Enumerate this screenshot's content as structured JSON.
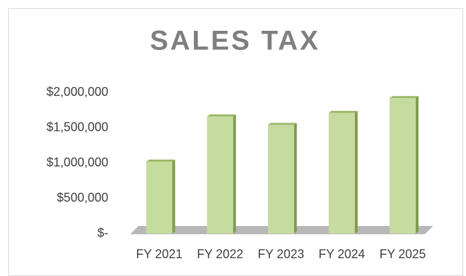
{
  "chart_data": {
    "type": "bar",
    "title": "SALES TAX",
    "categories": [
      "FY 2021",
      "FY 2022",
      "FY 2023",
      "FY 2024",
      "FY 2025"
    ],
    "values": [
      1020000,
      1660000,
      1540000,
      1710000,
      1920000
    ],
    "color": "#c6dc9e",
    "ylim": [
      0,
      2000000
    ],
    "yticks": [
      {
        "value": 0,
        "label": "$-"
      },
      {
        "value": 500000,
        "label": "$500,000"
      },
      {
        "value": 1000000,
        "label": "$1,000,000"
      },
      {
        "value": 1500000,
        "label": "$1,500,000"
      },
      {
        "value": 2000000,
        "label": "$2,000,000"
      }
    ],
    "grid": false
  }
}
